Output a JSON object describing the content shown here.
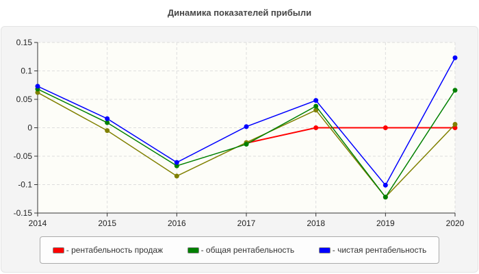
{
  "chart_data": {
    "type": "line",
    "title": "Динамика показателей прибыли",
    "x": [
      "2014",
      "2015",
      "2016",
      "2017",
      "2018",
      "2019",
      "2020"
    ],
    "ylim": [
      -0.15,
      0.15
    ],
    "yticks": [
      "0.15",
      "0.1",
      "0.05",
      "0",
      "-0.05",
      "-0.1",
      "-0.15"
    ],
    "grid": true,
    "legend_placement": "bottom",
    "series": [
      {
        "name": "- рентабельность продаж",
        "color": "#ff0000",
        "values": [
          null,
          null,
          null,
          -0.027,
          0,
          0,
          0
        ]
      },
      {
        "color": "#808000",
        "values": [
          0.062,
          -0.005,
          -0.085,
          -0.026,
          0.031,
          -0.122,
          0.006
        ]
      },
      {
        "name": "- общая рентабельность",
        "color": "#008000",
        "values": [
          0.068,
          0.009,
          -0.067,
          -0.029,
          0.038,
          -0.122,
          0.066
        ]
      },
      {
        "name": "- чистая рентабельность",
        "color": "#0000ff",
        "values": [
          0.073,
          0.016,
          -0.061,
          0.002,
          0.048,
          -0.101,
          0.123
        ]
      }
    ]
  }
}
